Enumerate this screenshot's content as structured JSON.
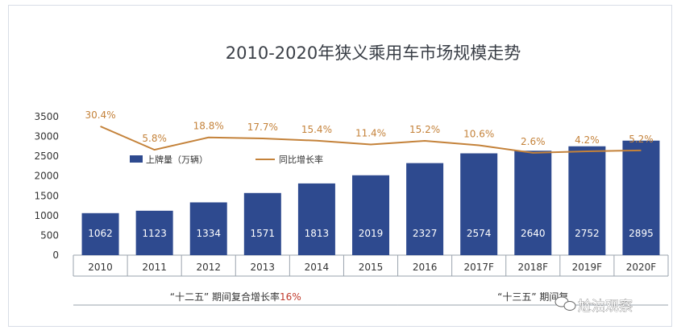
{
  "chart_data": {
    "type": "bar",
    "title": "2010-2020年狭义乘用车市场规模走势",
    "categories": [
      "2010",
      "2011",
      "2012",
      "2013",
      "2014",
      "2015",
      "2016",
      "2017F",
      "2018F",
      "2019F",
      "2020F"
    ],
    "series": [
      {
        "name": "上牌量（万辆）",
        "type": "bar",
        "values": [
          1062,
          1123,
          1334,
          1571,
          1813,
          2019,
          2327,
          2574,
          2640,
          2752,
          2895
        ],
        "labels": [
          "1062",
          "1123",
          "1334",
          "1571",
          "1813",
          "2019",
          "2327",
          "2574",
          "2640",
          "2752",
          "2895"
        ]
      },
      {
        "name": "同比增长率",
        "type": "line",
        "values": [
          30.4,
          5.8,
          18.8,
          17.7,
          15.4,
          11.4,
          15.2,
          10.6,
          2.6,
          4.2,
          5.2
        ],
        "labels": [
          "30.4%",
          "5.8%",
          "18.8%",
          "17.7%",
          "15.4%",
          "11.4%",
          "15.2%",
          "10.6%",
          "2.6%",
          "4.2%",
          "5.2%"
        ]
      }
    ],
    "y_ticks": [
      "3500",
      "3000",
      "2500",
      "2000",
      "1500",
      "1000",
      "500",
      "0"
    ],
    "ylim": [
      0,
      3500
    ],
    "legend_position": "top-left",
    "grid": false,
    "periods": [
      {
        "label": "“十二五” 期间复合增长率",
        "rate": "16%",
        "from": 0,
        "to": 5
      },
      {
        "label": "“十三五” 期间复",
        "rate": "",
        "from": 6,
        "to": 10
      }
    ],
    "colors": {
      "bar": "#2e4a8f",
      "line": "#c4823a",
      "axis": "#9aa3ad"
    }
  },
  "watermark": {
    "text": "尬油观察",
    "icon": "wechat-icon"
  }
}
